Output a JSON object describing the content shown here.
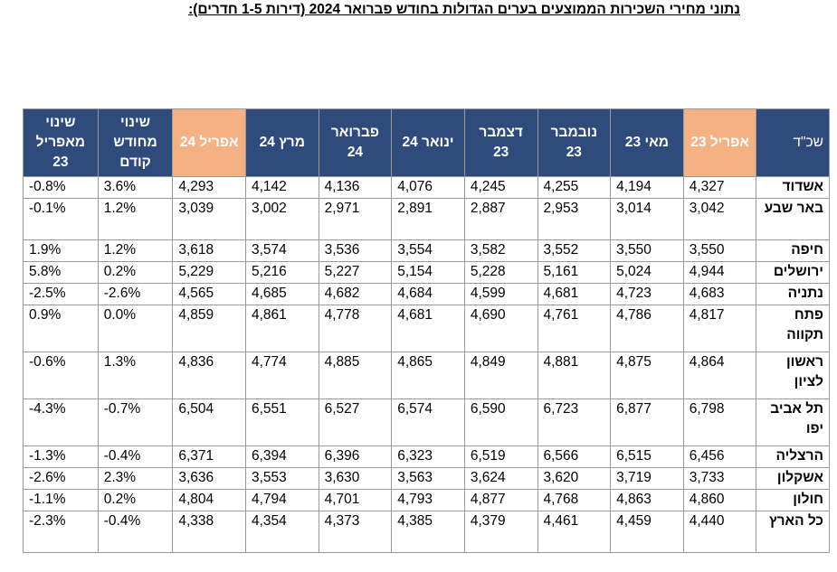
{
  "title": "נתוני מחירי השכירות הממוצעים בערים הגדולות בחודש פברואר 2024 (דירות 1-5 חדרים):",
  "headers": {
    "city": "שכ\"ד",
    "apr23": "אפריל 23",
    "may23": "מאי 23",
    "nov23": "נובמבר 23",
    "dec23": "דצמבר 23",
    "jan24": "ינואר 24",
    "feb24": "פברואר 24",
    "mar24": "מרץ 24",
    "apr24": "אפריל 24",
    "chg_prev": "שינוי מחודש קודם",
    "chg_apr": "שינוי מאפריל 23"
  },
  "highlight_color": "#f4b183",
  "header_color": "#2f4b7c",
  "rows": [
    {
      "city": "אשדוד",
      "v": [
        "4,327",
        "4,194",
        "4,255",
        "4,245",
        "4,076",
        "4,136",
        "4,142",
        "4,293"
      ],
      "chg_prev": "3.6%",
      "chg_apr": "-0.8%"
    },
    {
      "city": "באר שבע",
      "v": [
        "3,042",
        "3,014",
        "2,953",
        "2,887",
        "2,891",
        "2,971",
        "3,002",
        "3,039"
      ],
      "chg_prev": "1.2%",
      "chg_apr": "-0.1%"
    },
    {
      "city": "חיפה",
      "v": [
        "3,550",
        "3,550",
        "3,552",
        "3,582",
        "3,554",
        "3,536",
        "3,574",
        "3,618"
      ],
      "chg_prev": "1.2%",
      "chg_apr": "1.9%"
    },
    {
      "city": "ירושלים",
      "v": [
        "4,944",
        "5,024",
        "5,161",
        "5,228",
        "5,154",
        "5,227",
        "5,216",
        "5,229"
      ],
      "chg_prev": "0.2%",
      "chg_apr": "5.8%"
    },
    {
      "city": "נתניה",
      "v": [
        "4,683",
        "4,723",
        "4,681",
        "4,599",
        "4,684",
        "4,682",
        "4,685",
        "4,565"
      ],
      "chg_prev": "-2.6%",
      "chg_apr": "-2.5%"
    },
    {
      "city": "פתח תקווה",
      "v": [
        "4,817",
        "4,786",
        "4,761",
        "4,690",
        "4,681",
        "4,778",
        "4,861",
        "4,859"
      ],
      "chg_prev": "0.0%",
      "chg_apr": "0.9%"
    },
    {
      "city": "ראשון לציון",
      "v": [
        "4,864",
        "4,875",
        "4,881",
        "4,849",
        "4,865",
        "4,885",
        "4,774",
        "4,836"
      ],
      "chg_prev": "1.3%",
      "chg_apr": "-0.6%"
    },
    {
      "city": "תל אביב יפו",
      "v": [
        "6,798",
        "6,877",
        "6,723",
        "6,590",
        "6,574",
        "6,527",
        "6,551",
        "6,504"
      ],
      "chg_prev": "-0.7%",
      "chg_apr": "-4.3%"
    },
    {
      "city": "הרצליה",
      "v": [
        "6,456",
        "6,515",
        "6,566",
        "6,519",
        "6,323",
        "6,396",
        "6,394",
        "6,371"
      ],
      "chg_prev": "-0.4%",
      "chg_apr": "-1.3%"
    },
    {
      "city": "אשקלון",
      "v": [
        "3,733",
        "3,719",
        "3,620",
        "3,624",
        "3,563",
        "3,630",
        "3,553",
        "3,636"
      ],
      "chg_prev": "2.3%",
      "chg_apr": "-2.6%"
    },
    {
      "city": "חולון",
      "v": [
        "4,860",
        "4,863",
        "4,768",
        "4,877",
        "4,793",
        "4,701",
        "4,794",
        "4,804"
      ],
      "chg_prev": "0.2%",
      "chg_apr": "-1.1%"
    },
    {
      "city": "כל הארץ",
      "v": [
        "4,440",
        "4,459",
        "4,461",
        "4,379",
        "4,385",
        "4,373",
        "4,354",
        "4,338"
      ],
      "chg_prev": "-0.4%",
      "chg_apr": "-2.3%"
    }
  ]
}
